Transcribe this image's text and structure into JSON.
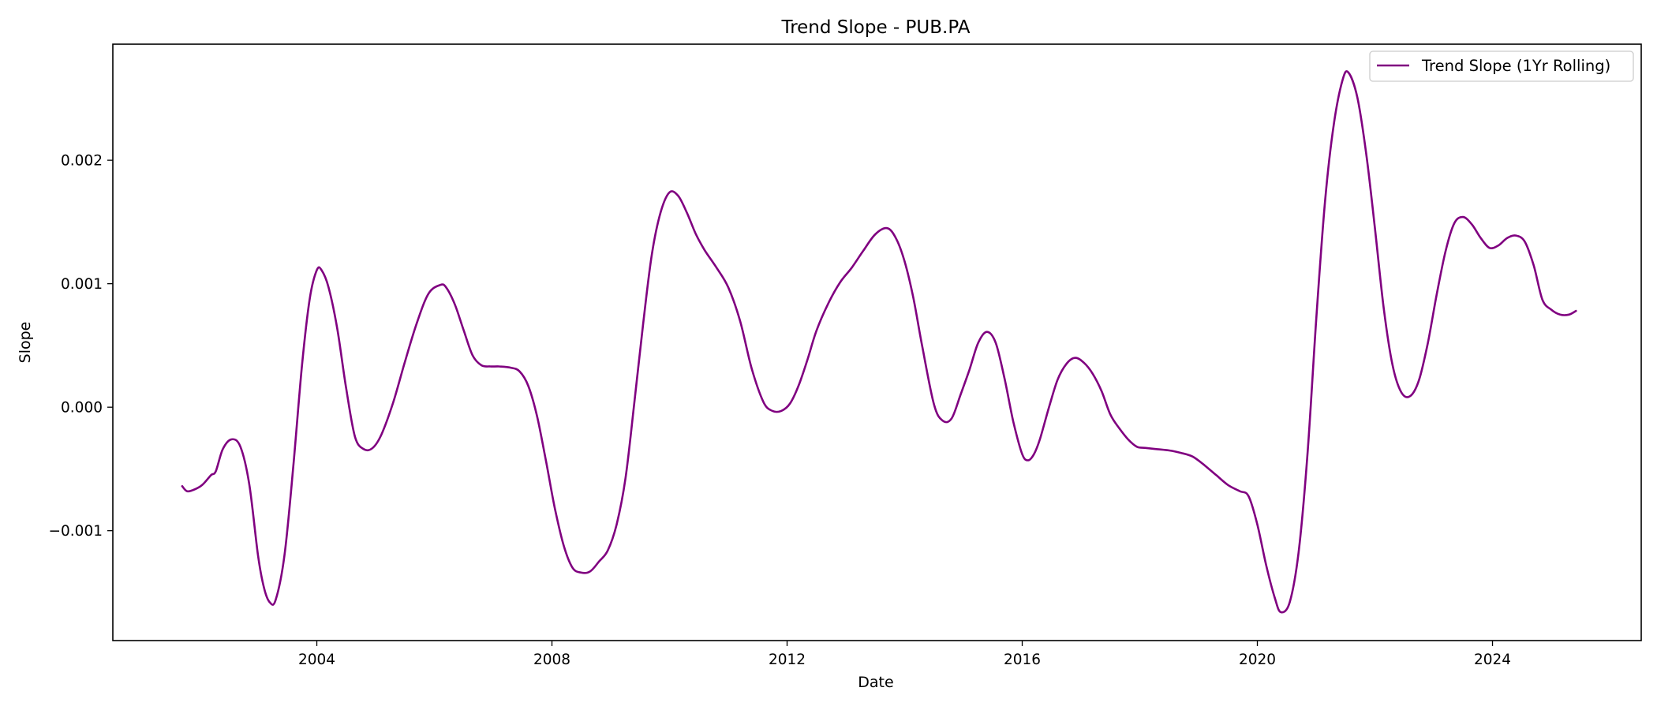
{
  "chart_data": {
    "type": "line",
    "title": "Trend Slope - PUB.PA",
    "xlabel": "Date",
    "ylabel": "Slope",
    "xlim": [
      2000.53,
      2026.53
    ],
    "ylim": [
      -0.00189,
      0.00294
    ],
    "x_ticks": [
      2004,
      2008,
      2012,
      2016,
      2020,
      2024
    ],
    "x_tick_labels": [
      "2004",
      "2008",
      "2012",
      "2016",
      "2020",
      "2024"
    ],
    "y_ticks": [
      -0.001,
      0.0,
      0.001,
      0.002
    ],
    "y_tick_labels": [
      "−0.001",
      "0.000",
      "0.001",
      "0.002"
    ],
    "grid": false,
    "legend_position": "top-right",
    "color": "#800080",
    "series": [
      {
        "name": "Trend Slope (1Yr Rolling)",
        "x": [
          2001.71,
          2001.79,
          2001.9,
          2002.05,
          2002.2,
          2002.28,
          2002.4,
          2002.55,
          2002.7,
          2002.85,
          2003.0,
          2003.1,
          2003.2,
          2003.3,
          2003.45,
          2003.6,
          2003.75,
          2003.88,
          2004.0,
          2004.08,
          2004.2,
          2004.35,
          2004.5,
          2004.65,
          2004.8,
          2004.95,
          2005.1,
          2005.3,
          2005.5,
          2005.7,
          2005.9,
          2006.1,
          2006.2,
          2006.35,
          2006.5,
          2006.65,
          2006.8,
          2006.95,
          2007.1,
          2007.3,
          2007.45,
          2007.6,
          2007.75,
          2007.9,
          2008.05,
          2008.2,
          2008.35,
          2008.5,
          2008.65,
          2008.8,
          2008.95,
          2009.1,
          2009.25,
          2009.4,
          2009.55,
          2009.7,
          2009.85,
          2010.0,
          2010.15,
          2010.3,
          2010.45,
          2010.6,
          2010.8,
          2011.0,
          2011.2,
          2011.4,
          2011.6,
          2011.75,
          2011.9,
          2012.05,
          2012.2,
          2012.35,
          2012.5,
          2012.7,
          2012.9,
          2013.1,
          2013.3,
          2013.5,
          2013.7,
          2013.85,
          2014.0,
          2014.15,
          2014.3,
          2014.5,
          2014.65,
          2014.8,
          2014.95,
          2015.1,
          2015.25,
          2015.4,
          2015.55,
          2015.7,
          2015.85,
          2016.0,
          2016.1,
          2016.2,
          2016.3,
          2016.45,
          2016.6,
          2016.75,
          2016.9,
          2017.05,
          2017.2,
          2017.35,
          2017.5,
          2017.65,
          2017.8,
          2017.95,
          2018.1,
          2018.3,
          2018.5,
          2018.7,
          2018.9,
          2019.1,
          2019.3,
          2019.5,
          2019.7,
          2019.85,
          2020.0,
          2020.15,
          2020.3,
          2020.4,
          2020.55,
          2020.7,
          2020.85,
          2021.0,
          2021.15,
          2021.3,
          2021.45,
          2021.55,
          2021.7,
          2021.85,
          2022.0,
          2022.15,
          2022.3,
          2022.45,
          2022.6,
          2022.75,
          2022.9,
          2023.05,
          2023.2,
          2023.35,
          2023.5,
          2023.65,
          2023.8,
          2023.95,
          2024.1,
          2024.25,
          2024.4,
          2024.55,
          2024.7,
          2024.85,
          2025.0,
          2025.15,
          2025.3,
          2025.42
        ],
        "y": [
          -0.00064,
          -0.00068,
          -0.00067,
          -0.00063,
          -0.00055,
          -0.00052,
          -0.00034,
          -0.00026,
          -0.00032,
          -0.00062,
          -0.0012,
          -0.00146,
          -0.00158,
          -0.00156,
          -0.0012,
          -0.00048,
          0.00035,
          0.00088,
          0.00111,
          0.00111,
          0.00097,
          0.00063,
          0.00015,
          -0.00024,
          -0.00034,
          -0.00033,
          -0.00022,
          4e-05,
          0.00037,
          0.00068,
          0.00092,
          0.00099,
          0.00097,
          0.00083,
          0.00062,
          0.00042,
          0.00034,
          0.00033,
          0.00033,
          0.00032,
          0.00029,
          0.00017,
          -8e-05,
          -0.00044,
          -0.00082,
          -0.00112,
          -0.0013,
          -0.00134,
          -0.00133,
          -0.00125,
          -0.00116,
          -0.00095,
          -0.00058,
          3e-05,
          0.00067,
          0.00124,
          0.00158,
          0.00174,
          0.00171,
          0.00157,
          0.0014,
          0.00127,
          0.00113,
          0.00097,
          0.0007,
          0.00031,
          4e-05,
          -3e-05,
          -3e-05,
          3e-05,
          0.00018,
          0.00039,
          0.00062,
          0.00084,
          0.00101,
          0.00113,
          0.00127,
          0.0014,
          0.00145,
          0.00137,
          0.00118,
          0.00088,
          0.00049,
          2e-05,
          -0.00011,
          -9e-05,
          0.0001,
          0.0003,
          0.00052,
          0.00061,
          0.00052,
          0.00023,
          -0.00012,
          -0.00038,
          -0.00043,
          -0.00038,
          -0.00026,
          -1e-05,
          0.00022,
          0.00035,
          0.0004,
          0.00036,
          0.00027,
          0.00013,
          -6e-05,
          -0.00017,
          -0.00026,
          -0.00032,
          -0.00033,
          -0.00034,
          -0.00035,
          -0.00037,
          -0.0004,
          -0.00047,
          -0.00055,
          -0.00063,
          -0.00068,
          -0.00072,
          -0.00095,
          -0.00128,
          -0.00155,
          -0.00166,
          -0.00158,
          -0.00118,
          -0.0004,
          0.0007,
          0.00166,
          0.00229,
          0.00265,
          0.00271,
          0.00251,
          0.00206,
          0.00145,
          0.0008,
          0.00034,
          0.00012,
          9e-05,
          0.00022,
          0.00052,
          0.00091,
          0.00126,
          0.00149,
          0.00154,
          0.00148,
          0.00137,
          0.00129,
          0.00131,
          0.00137,
          0.00139,
          0.00134,
          0.00115,
          0.00087,
          0.00079,
          0.00075,
          0.00075,
          0.00078
        ]
      }
    ]
  }
}
